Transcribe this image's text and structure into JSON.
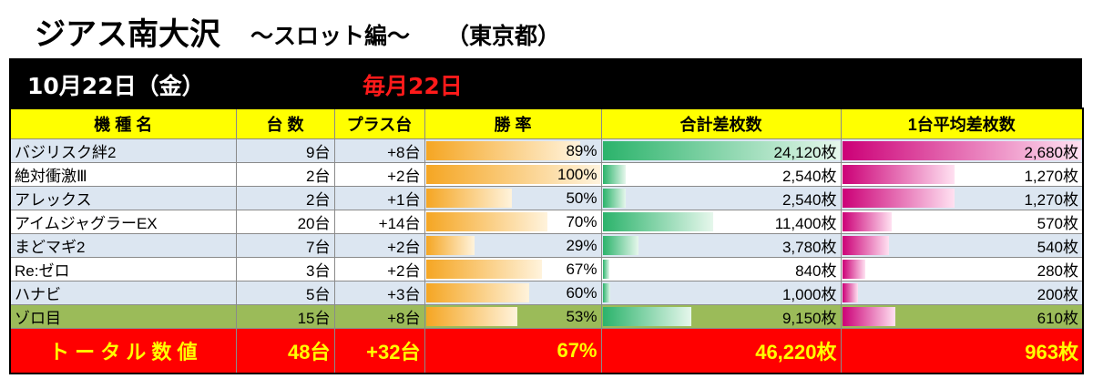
{
  "title": {
    "main": "ジアス南大沢",
    "sub": "～スロット編～",
    "location": "（東京都）"
  },
  "date_bar": {
    "date": "10月22日（金）",
    "event": "毎月22日"
  },
  "headers": {
    "name": "機 種 名",
    "count": "台 数",
    "plus": "プラス台",
    "win_rate": "勝 率",
    "total_diff": "合計差枚数",
    "avg_diff": "1台平均差枚数"
  },
  "rows": [
    {
      "name": "バジリスク絆2",
      "count": "9台",
      "plus": "+8台",
      "win_rate": "89%",
      "total_diff": "24,120枚",
      "avg_diff": "2,680枚",
      "win_val": 89,
      "total_val": 24120,
      "avg_val": 2680
    },
    {
      "name": "絶対衝激Ⅲ",
      "count": "2台",
      "plus": "+2台",
      "win_rate": "100%",
      "total_diff": "2,540枚",
      "avg_diff": "1,270枚",
      "win_val": 100,
      "total_val": 2540,
      "avg_val": 1270
    },
    {
      "name": "アレックス",
      "count": "2台",
      "plus": "+1台",
      "win_rate": "50%",
      "total_diff": "2,540枚",
      "avg_diff": "1,270枚",
      "win_val": 50,
      "total_val": 2540,
      "avg_val": 1270
    },
    {
      "name": "アイムジャグラーEX",
      "count": "20台",
      "plus": "+14台",
      "win_rate": "70%",
      "total_diff": "11,400枚",
      "avg_diff": "570枚",
      "win_val": 70,
      "total_val": 11400,
      "avg_val": 570
    },
    {
      "name": "まどマギ2",
      "count": "7台",
      "plus": "+2台",
      "win_rate": "29%",
      "total_diff": "3,780枚",
      "avg_diff": "540枚",
      "win_val": 29,
      "total_val": 3780,
      "avg_val": 540
    },
    {
      "name": "Re:ゼロ",
      "count": "3台",
      "plus": "+2台",
      "win_rate": "67%",
      "total_diff": "840枚",
      "avg_diff": "280枚",
      "win_val": 67,
      "total_val": 840,
      "avg_val": 280
    },
    {
      "name": "ハナビ",
      "count": "5台",
      "plus": "+3台",
      "win_rate": "60%",
      "total_diff": "1,000枚",
      "avg_diff": "200枚",
      "win_val": 60,
      "total_val": 1000,
      "avg_val": 200
    },
    {
      "name": "ゾロ目",
      "count": "15台",
      "plus": "+8台",
      "win_rate": "53%",
      "total_diff": "9,150枚",
      "avg_diff": "610枚",
      "win_val": 53,
      "total_val": 9150,
      "avg_val": 610,
      "highlight": true
    }
  ],
  "totals": {
    "label": "ト ー タ ル 数 値",
    "count": "48台",
    "plus": "+32台",
    "win_rate": "67%",
    "total_diff": "46,220枚",
    "avg_diff": "963枚"
  },
  "colors": {
    "header_bg": "#ffff00",
    "total_bg": "#ff0000",
    "total_text": "#ffff00",
    "event_text": "#ff1a1a",
    "row_alt": "#dce6f1",
    "highlight_row": "#9bbb59"
  },
  "max_values": {
    "win": 100,
    "total": 24120,
    "avg": 2680
  }
}
